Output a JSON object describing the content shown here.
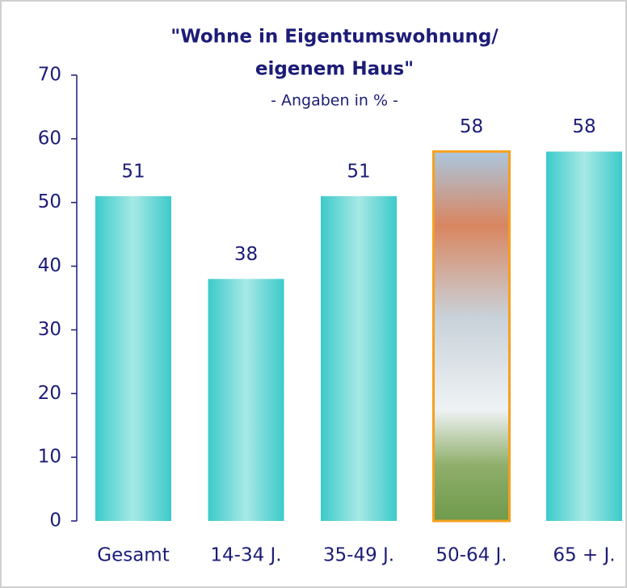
{
  "chart_data": {
    "type": "bar",
    "title": [
      "\"Wohne in Eigentumswohnung/",
      "eigenem Haus\""
    ],
    "subtitle": "- Angaben in % -",
    "categories": [
      "Gesamt",
      "14-34 J.",
      "35-49 J.",
      "50-64 J.",
      "65 + J."
    ],
    "values": [
      51,
      38,
      51,
      58,
      58
    ],
    "color": "#3ccaca",
    "highlight_index": 3,
    "highlight_border": "#f5a020",
    "ylim": [
      0,
      70
    ],
    "yticks": [
      0,
      10,
      20,
      30,
      40,
      50,
      60,
      70
    ],
    "grid": false
  }
}
